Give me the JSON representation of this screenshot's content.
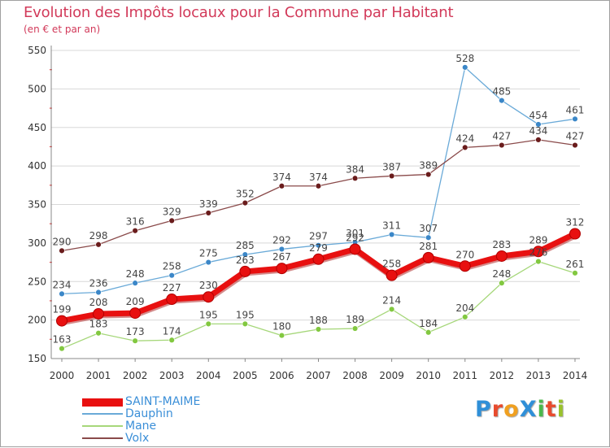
{
  "title": "Evolution des Impôts locaux pour la Commune par Habitant",
  "subtitle": "(en € et par an)",
  "colors": {
    "title": "#d23a5a",
    "grid": "#d8d8d8",
    "axis": "#888888",
    "tick_marks": "#e04040",
    "value_label": "#444444"
  },
  "logo": {
    "text": "ProXiti",
    "letter_colors": [
      "#2f8fd8",
      "#e84b2e",
      "#f0a020",
      "#2f8fd8",
      "#4cb84c",
      "#e84b2e",
      "#9ac22c"
    ]
  },
  "chart_data": {
    "type": "line",
    "title": "Evolution des Impôts locaux pour la Commune par Habitant",
    "subtitle": "(en € et par an)",
    "x": [
      "2000",
      "2001",
      "2002",
      "2003",
      "2004",
      "2005",
      "2006",
      "2007",
      "2008",
      "2009",
      "2010",
      "2011",
      "2012",
      "2013",
      "2014"
    ],
    "ylim": [
      150,
      550
    ],
    "yticks": [
      150,
      200,
      250,
      300,
      350,
      400,
      450,
      500,
      550
    ],
    "grid": "horizontal",
    "legend_position": "bottom-left",
    "series": [
      {
        "name": "SAINT-MAIME",
        "color": "#e81010",
        "legend_text_color": "#3b8fd8",
        "emphasis": true,
        "values": [
          199,
          208,
          209,
          227,
          230,
          263,
          267,
          279,
          292,
          258,
          281,
          270,
          283,
          289,
          312
        ]
      },
      {
        "name": "Dauphin",
        "color": "#6aaad8",
        "marker_color": "#3b87c8",
        "legend_text_color": "#3b8fd8",
        "emphasis": false,
        "values": [
          234,
          236,
          248,
          258,
          275,
          285,
          292,
          297,
          301,
          311,
          307,
          528,
          485,
          454,
          461
        ]
      },
      {
        "name": "Mane",
        "color": "#a6d77a",
        "marker_color": "#82c840",
        "legend_text_color": "#3b8fd8",
        "emphasis": false,
        "values": [
          163,
          183,
          173,
          174,
          195,
          195,
          180,
          188,
          189,
          214,
          184,
          204,
          248,
          276,
          261
        ]
      },
      {
        "name": "Volx",
        "color": "#8a4a4a",
        "marker_color": "#6a1c1c",
        "legend_text_color": "#3b8fd8",
        "emphasis": false,
        "values": [
          290,
          298,
          316,
          329,
          339,
          352,
          374,
          374,
          384,
          387,
          389,
          424,
          427,
          434,
          427
        ]
      }
    ]
  }
}
